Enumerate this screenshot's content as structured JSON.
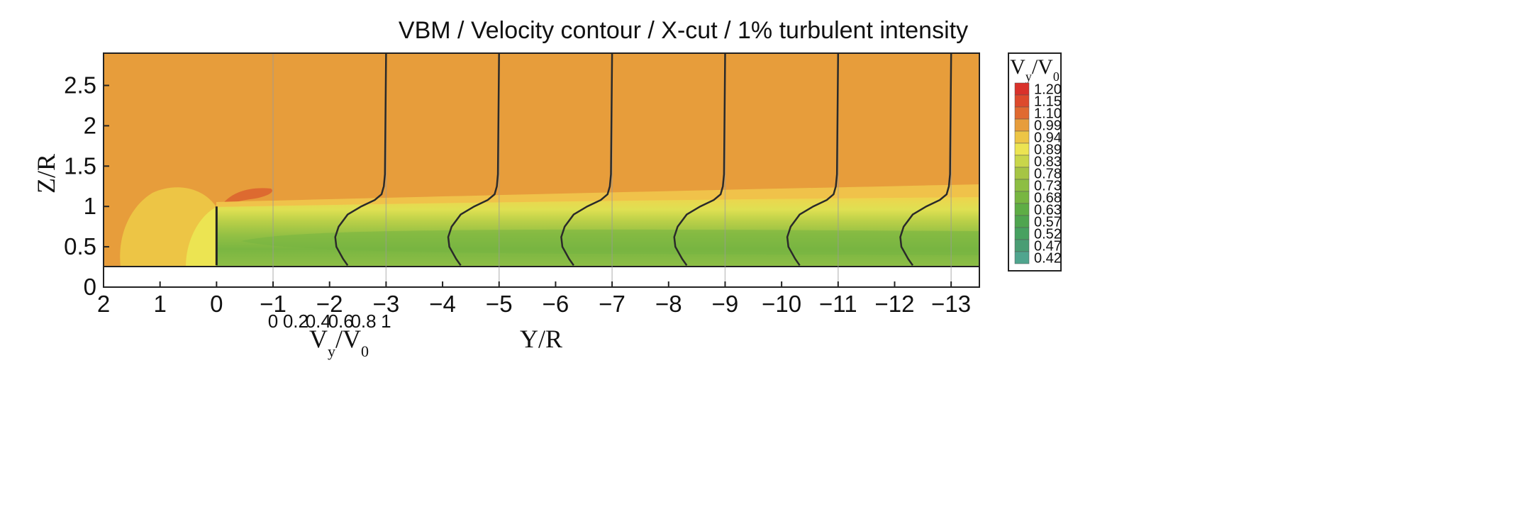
{
  "title": "VBM / Velocity contour / X-cut / 1% turbulent intensity",
  "chart_data": {
    "type": "heatmap",
    "title": "VBM / Velocity contour / X-cut / 1% turbulent intensity",
    "xlabel": "Y/R",
    "ylabel": "Z/R",
    "profile_scale_label": "V_y/V_0",
    "xlim": [
      2,
      -13.5
    ],
    "ylim": [
      0,
      2.9
    ],
    "x_ticks": [
      "2",
      "1",
      "0",
      "−1",
      "−2",
      "−3",
      "−4",
      "−5",
      "−6",
      "−7",
      "−8",
      "−9",
      "−10",
      "−11",
      "−12",
      "−13"
    ],
    "y_ticks": [
      "0",
      "0.5",
      "1",
      "1.5",
      "2",
      "2.5"
    ],
    "profile_scale_ticks": [
      "0",
      "0.2",
      "0.4",
      "0.6",
      "0.8",
      "1"
    ],
    "ground_level_z": 0.27,
    "rotor_disk": {
      "y": 0,
      "z_bottom": 0.27,
      "z_top": 1.0
    },
    "profile_stations_y": [
      -1,
      -3,
      -5,
      -7,
      -9,
      -11,
      -13
    ],
    "profile_shape": {
      "z": [
        0.27,
        0.35,
        0.5,
        0.62,
        0.75,
        0.9,
        1.0,
        1.08,
        1.15,
        1.25,
        1.4,
        2.9
      ],
      "v": [
        0.66,
        0.62,
        0.56,
        0.55,
        0.58,
        0.66,
        0.78,
        0.9,
        0.96,
        0.98,
        0.99,
        1.0
      ]
    },
    "colorbar": {
      "title": "V_y/V_0",
      "levels": [
        "1.20",
        "1.15",
        "1.10",
        "0.99",
        "0.94",
        "0.89",
        "0.83",
        "0.78",
        "0.73",
        "0.68",
        "0.63",
        "0.57",
        "0.52",
        "0.47",
        "0.42"
      ],
      "colors": [
        "#d9322b",
        "#dd4a2c",
        "#e06a30",
        "#e79d3b",
        "#edc545",
        "#ece452",
        "#c9d64a",
        "#a6c545",
        "#8dbe43",
        "#78b641",
        "#5ead45",
        "#4fa54f",
        "#47a160",
        "#4a9d74",
        "#50a58e"
      ]
    },
    "colors": {
      "freestream": "#e79d3b",
      "wake_core": "#7ab642",
      "upstream_blockage": "#edc545",
      "tip_accel": "#dd6a30"
    }
  }
}
